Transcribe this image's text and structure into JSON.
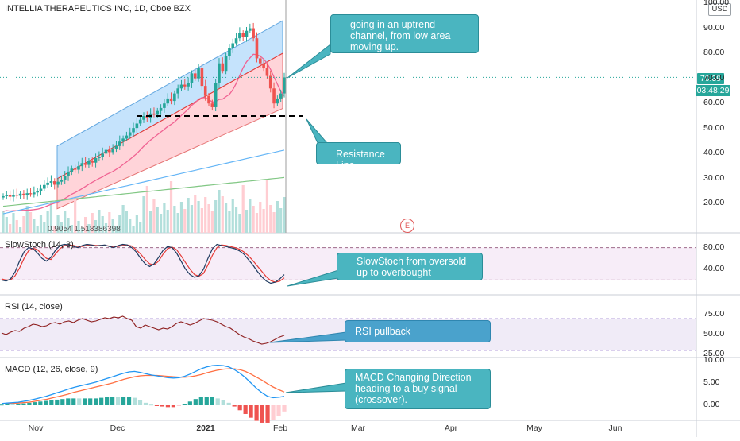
{
  "header": {
    "title": "INTELLIA THERAPEUTICS INC, 1D, Cboe BZX",
    "currency": "USD"
  },
  "price_tag": {
    "last": "70.39",
    "countdown": "03:48:29"
  },
  "volume_readout": "0.9054 1.518386398",
  "earnings_marker": "E",
  "panels": {
    "stoch": {
      "title": "SlowStoch (14, 3)"
    },
    "rsi": {
      "title": "RSI (14, close)"
    },
    "macd": {
      "title": "MACD (12, 26, close, 9)"
    }
  },
  "annotations": {
    "uptrend": "going in an uptrend channel, from low area moving up.",
    "resistance": "Resistance Line",
    "stoch": "SlowStoch from oversold up to overbought",
    "rsi": "RSI pullback",
    "macd": "MACD Changing Direction heading to a buy signal (crossover)."
  },
  "axes": {
    "price_ticks": [
      "100.00",
      "90.00",
      "80.00",
      "70.00",
      "60.00",
      "50.00",
      "40.00",
      "30.00",
      "20.00"
    ],
    "stoch_ticks": [
      "80.00",
      "40.00"
    ],
    "rsi_ticks": [
      "75.00",
      "50.00",
      "25.00"
    ],
    "macd_ticks": [
      "10.00",
      "5.00",
      "0.00"
    ],
    "x_ticks": [
      "Nov",
      "Dec",
      "2021",
      "Feb",
      "Mar",
      "Apr",
      "May",
      "Jun"
    ]
  },
  "colors": {
    "up": "#26a69a",
    "down": "#ef5350",
    "channel_upper": "#bbdefb",
    "channel_lower": "#ffcdd2",
    "ma_fast": "#f06292",
    "ma_mid": "#64b5f6",
    "ma_slow": "#81c784",
    "callout": "#4ab5c0",
    "macd_line": "#2196f3",
    "signal_line": "#ff7043"
  },
  "chart_data": [
    {
      "type": "candlestick",
      "title": "INTELLIA THERAPEUTICS INC, 1D, Cboe BZX",
      "ylim": [
        10,
        100
      ],
      "last_price": 70.39,
      "resistance_level": 55,
      "closes": [
        23,
        23.5,
        22.8,
        23.6,
        23.2,
        24,
        23.4,
        24.2,
        23.8,
        24.5,
        25.2,
        26,
        27.5,
        28.4,
        29,
        27.6,
        28.8,
        29.5,
        31,
        32.5,
        34,
        33.6,
        35,
        36.2,
        35.5,
        37,
        36.4,
        38.2,
        38.8,
        40,
        41.5,
        40.6,
        42,
        43,
        44.8,
        46,
        47.2,
        48.5,
        50.2,
        52,
        53.5,
        55,
        54.2,
        56,
        55.5,
        57,
        58.2,
        60,
        62,
        61,
        64,
        66,
        67.5,
        66.8,
        68,
        72,
        70,
        74,
        67,
        63,
        60,
        58.5,
        68,
        76,
        73,
        79,
        82,
        84,
        86,
        88,
        86.5,
        89,
        90,
        86,
        78,
        76,
        74,
        71,
        66,
        60,
        62,
        64,
        70.39
      ],
      "volume_ma_fast": [
        14,
        15,
        15,
        16,
        16,
        17,
        17,
        17,
        18,
        18,
        18,
        19,
        19,
        20,
        20,
        21,
        21,
        22,
        22,
        22,
        23,
        23,
        23,
        24,
        24,
        25,
        25,
        25,
        26,
        26,
        27,
        28,
        29,
        30,
        30,
        31,
        32,
        33,
        33,
        34,
        35,
        36,
        36,
        37,
        38,
        39,
        39,
        40,
        40,
        41,
        41,
        42,
        42,
        43,
        43,
        44,
        44,
        45,
        45,
        46,
        46,
        47,
        48,
        50,
        52,
        53,
        54,
        55,
        55,
        56,
        56,
        56,
        57,
        57,
        57,
        57,
        57,
        58,
        58,
        58,
        58,
        58,
        58
      ]
    },
    {
      "type": "line",
      "title": "SlowStoch (14, 3)",
      "ylim": [
        0,
        100
      ],
      "k": [
        20,
        18,
        22,
        35,
        55,
        72,
        80,
        78,
        70,
        60,
        55,
        62,
        75,
        84,
        86,
        85,
        82,
        80,
        84,
        86,
        85,
        83,
        84,
        85,
        82,
        80,
        84,
        86,
        85,
        80,
        72,
        60,
        50,
        45,
        50,
        62,
        75,
        82,
        80,
        70,
        55,
        40,
        30,
        25,
        28,
        40,
        60,
        78,
        86,
        84,
        82,
        80,
        78,
        74,
        68,
        58,
        48,
        36,
        26,
        18,
        14,
        16,
        22,
        30
      ],
      "d": [
        22,
        20,
        20,
        28,
        42,
        60,
        74,
        79,
        76,
        68,
        60,
        58,
        68,
        78,
        84,
        85,
        84,
        82,
        82,
        84,
        85,
        84,
        84,
        84,
        83,
        82,
        82,
        84,
        85,
        83,
        76,
        68,
        58,
        50,
        48,
        55,
        68,
        78,
        81,
        76,
        65,
        52,
        40,
        30,
        27,
        32,
        48,
        66,
        80,
        85,
        84,
        82,
        80,
        77,
        72,
        65,
        56,
        46,
        36,
        26,
        19,
        16,
        18,
        24
      ]
    },
    {
      "type": "line",
      "title": "RSI (14, close)",
      "ylim": [
        25,
        75
      ],
      "band": [
        30,
        70
      ],
      "values": [
        52,
        50,
        53,
        55,
        54,
        58,
        60,
        63,
        62,
        60,
        61,
        64,
        65,
        63,
        66,
        67,
        65,
        68,
        70,
        68,
        66,
        67,
        69,
        71,
        70,
        72,
        71,
        73,
        70,
        68,
        60,
        58,
        62,
        60,
        58,
        56,
        58,
        57,
        60,
        64,
        66,
        64,
        62,
        64,
        67,
        70,
        69,
        68,
        66,
        63,
        60,
        58,
        54,
        50,
        47,
        45,
        42,
        40,
        38,
        39,
        41,
        44,
        47,
        49
      ],
      "last": 50
    },
    {
      "type": "bar",
      "title": "MACD (12, 26, close, 9)",
      "ylim": [
        -3,
        10
      ],
      "macd": [
        0.4,
        0.5,
        0.6,
        0.7,
        0.9,
        1.1,
        1.4,
        1.7,
        2.0,
        2.4,
        2.8,
        3.2,
        3.6,
        4.0,
        4.3,
        4.6,
        4.9,
        5.2,
        5.6,
        6.0,
        6.4,
        6.8,
        7.2,
        7.5,
        7.6,
        7.4,
        7.1,
        6.8,
        6.6,
        6.4,
        6.2,
        6.1,
        6.2,
        6.5,
        7.0,
        7.6,
        8.2,
        8.6,
        8.9,
        9.0,
        8.9,
        8.6,
        8.0,
        7.2,
        6.2,
        5.0,
        3.8,
        2.8,
        2.0,
        1.7,
        1.8,
        2.0
      ],
      "signal": [
        0.3,
        0.3,
        0.4,
        0.5,
        0.6,
        0.7,
        0.9,
        1.1,
        1.3,
        1.6,
        1.9,
        2.2,
        2.5,
        2.9,
        3.2,
        3.5,
        3.8,
        4.1,
        4.4,
        4.7,
        5.0,
        5.4,
        5.8,
        6.1,
        6.4,
        6.6,
        6.7,
        6.7,
        6.7,
        6.6,
        6.5,
        6.4,
        6.3,
        6.3,
        6.4,
        6.6,
        6.9,
        7.3,
        7.6,
        7.9,
        8.1,
        8.2,
        8.2,
        8.0,
        7.6,
        7.0,
        6.3,
        5.6,
        4.8,
        4.1,
        3.5,
        3.0
      ]
    }
  ]
}
